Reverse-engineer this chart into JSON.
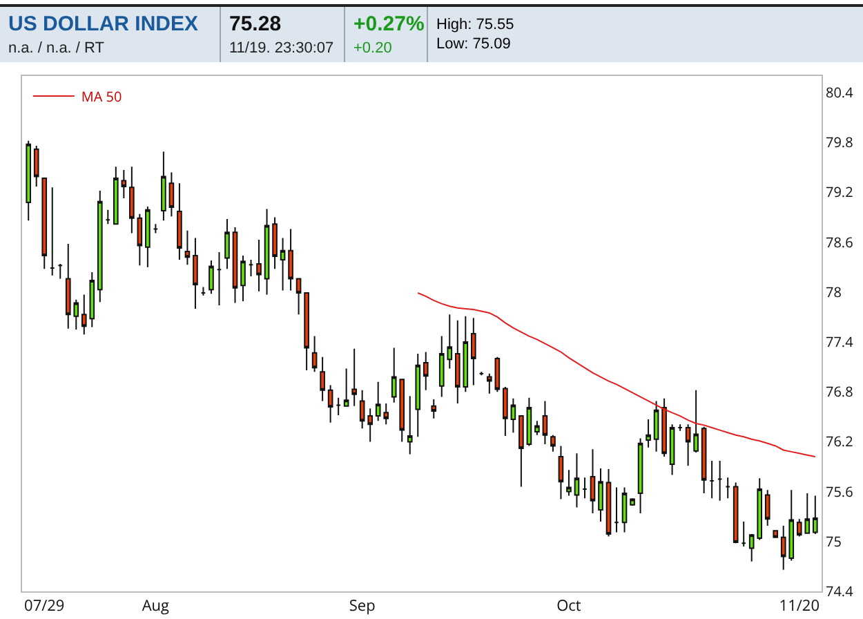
{
  "chart_data": {
    "type": "candlestick",
    "title": "US DOLLAR INDEX",
    "subtitle": "n.a. / n.a. / RT",
    "annotations": [
      "75.28",
      "11/19. 23:30:07",
      "+0.27%",
      "+0.20",
      "High: 75.55",
      "Low: 75.09"
    ],
    "categories": [
      null,
      null,
      "07/29",
      null,
      null,
      null,
      null,
      null,
      null,
      null,
      null,
      null,
      null,
      null,
      null,
      null,
      "Aug",
      null,
      null,
      null,
      null,
      null,
      null,
      null,
      null,
      null,
      null,
      null,
      null,
      null,
      null,
      null,
      null,
      null,
      null,
      null,
      null,
      null,
      null,
      null,
      null,
      null,
      "Sep",
      null,
      null,
      null,
      null,
      null,
      null,
      null,
      null,
      null,
      null,
      null,
      null,
      null,
      null,
      null,
      null,
      null,
      null,
      null,
      null,
      null,
      null,
      null,
      null,
      null,
      "Oct",
      null,
      null,
      null,
      null,
      null,
      null,
      null,
      null,
      null,
      null,
      null,
      null,
      null,
      null,
      null,
      null,
      null,
      null,
      null,
      null,
      null,
      null,
      null,
      null,
      null,
      null,
      null,
      null,
      "11/20",
      null,
      null
    ],
    "ohlc": [
      [
        79.08,
        79.82,
        78.86,
        79.78
      ],
      [
        79.72,
        79.76,
        79.27,
        79.39
      ],
      [
        79.37,
        79.37,
        78.28,
        78.44
      ],
      [
        78.29,
        79.26,
        78.2,
        78.29
      ],
      [
        78.32,
        78.34,
        78.16,
        78.32
      ],
      [
        78.16,
        78.58,
        77.56,
        77.73
      ],
      [
        77.71,
        77.91,
        77.55,
        77.87
      ],
      [
        77.73,
        77.97,
        77.49,
        77.59
      ],
      [
        77.68,
        78.24,
        77.58,
        78.14
      ],
      [
        78.03,
        79.22,
        77.88,
        79.09
      ],
      [
        78.87,
        78.99,
        78.82,
        78.87
      ],
      [
        78.82,
        79.51,
        78.82,
        79.37
      ],
      [
        79.34,
        79.47,
        79.13,
        79.27
      ],
      [
        79.26,
        79.51,
        78.71,
        78.89
      ],
      [
        78.89,
        78.94,
        78.32,
        78.56
      ],
      [
        78.54,
        79.03,
        78.3,
        78.99
      ],
      [
        78.76,
        78.82,
        78.71,
        78.76
      ],
      [
        78.98,
        79.69,
        78.86,
        79.39
      ],
      [
        79.31,
        79.44,
        78.91,
        79.02
      ],
      [
        78.97,
        79.31,
        78.39,
        78.53
      ],
      [
        78.49,
        78.74,
        78.33,
        78.42
      ],
      [
        78.44,
        78.65,
        77.8,
        78.09
      ],
      [
        77.99,
        78.06,
        77.96,
        77.99
      ],
      [
        78.03,
        78.38,
        77.98,
        78.31
      ],
      [
        78.27,
        78.48,
        77.84,
        78.27
      ],
      [
        78.41,
        78.88,
        78.28,
        78.72
      ],
      [
        78.72,
        78.78,
        77.87,
        78.05
      ],
      [
        78.08,
        78.44,
        77.89,
        78.37
      ],
      [
        78.33,
        78.39,
        78.19,
        78.33
      ],
      [
        78.34,
        78.63,
        78.01,
        78.21
      ],
      [
        78.16,
        79.0,
        77.97,
        78.8
      ],
      [
        78.82,
        78.9,
        78.28,
        78.43
      ],
      [
        78.39,
        78.65,
        78.02,
        78.5
      ],
      [
        78.5,
        78.76,
        78.02,
        78.16
      ],
      [
        78.16,
        78.16,
        77.73,
        77.99
      ],
      [
        77.99,
        77.99,
        77.06,
        77.33
      ],
      [
        77.27,
        77.47,
        77.04,
        77.09
      ],
      [
        77.04,
        77.22,
        76.69,
        76.82
      ],
      [
        76.82,
        76.88,
        76.43,
        76.62
      ],
      [
        76.64,
        76.73,
        76.52,
        76.64
      ],
      [
        76.63,
        77.08,
        76.63,
        76.7
      ],
      [
        76.83,
        77.32,
        76.63,
        76.77
      ],
      [
        76.69,
        76.82,
        76.36,
        76.45
      ],
      [
        76.51,
        76.6,
        76.2,
        76.41
      ],
      [
        76.51,
        76.92,
        76.45,
        76.65
      ],
      [
        76.55,
        76.66,
        76.41,
        76.48
      ],
      [
        76.74,
        77.33,
        76.67,
        76.98
      ],
      [
        76.95,
        76.95,
        76.2,
        76.34
      ],
      [
        76.2,
        76.75,
        76.05,
        76.27
      ],
      [
        76.59,
        77.26,
        76.26,
        77.12
      ],
      [
        77.15,
        77.28,
        76.82,
        76.99
      ],
      [
        76.63,
        76.71,
        76.48,
        76.57
      ],
      [
        76.87,
        77.47,
        76.74,
        77.26
      ],
      [
        77.19,
        77.73,
        77.08,
        77.34
      ],
      [
        77.26,
        77.66,
        76.66,
        76.86
      ],
      [
        76.86,
        77.71,
        76.8,
        77.4
      ],
      [
        77.5,
        77.69,
        76.88,
        77.2
      ],
      [
        77.02,
        77.04,
        77.0,
        77.02
      ],
      [
        76.98,
        77.02,
        76.78,
        76.93
      ],
      [
        77.2,
        77.22,
        76.8,
        76.83
      ],
      [
        76.84,
        76.86,
        76.27,
        76.48
      ],
      [
        76.47,
        76.72,
        76.31,
        76.64
      ],
      [
        76.51,
        76.52,
        75.66,
        76.12
      ],
      [
        76.17,
        76.73,
        76.15,
        76.61
      ],
      [
        76.32,
        76.45,
        76.28,
        76.39
      ],
      [
        76.51,
        76.69,
        76.17,
        76.28
      ],
      [
        76.26,
        76.28,
        76.08,
        76.15
      ],
      [
        76.02,
        76.15,
        75.51,
        75.72
      ],
      [
        75.6,
        75.86,
        75.55,
        75.65
      ],
      [
        75.56,
        76.06,
        75.41,
        75.76
      ],
      [
        75.63,
        75.77,
        75.52,
        75.63
      ],
      [
        75.78,
        76.11,
        75.34,
        75.49
      ],
      [
        75.38,
        75.88,
        75.24,
        75.72
      ],
      [
        75.71,
        75.87,
        75.06,
        75.09
      ],
      [
        75.23,
        75.65,
        75.11,
        75.23
      ],
      [
        75.23,
        75.65,
        75.11,
        75.58
      ],
      [
        75.44,
        75.52,
        75.43,
        75.51
      ],
      [
        75.58,
        76.24,
        75.34,
        76.18
      ],
      [
        76.22,
        76.47,
        76.13,
        76.28
      ],
      [
        76.23,
        76.69,
        76.08,
        76.58
      ],
      [
        76.61,
        76.72,
        76.02,
        76.06
      ],
      [
        75.93,
        76.41,
        75.8,
        76.37
      ],
      [
        76.37,
        76.41,
        76.33,
        76.37
      ],
      [
        76.37,
        76.41,
        75.91,
        76.2
      ],
      [
        76.09,
        76.82,
        76.07,
        76.29
      ],
      [
        76.36,
        76.38,
        75.58,
        75.74
      ],
      [
        75.73,
        75.97,
        75.52,
        75.73
      ],
      [
        75.75,
        75.97,
        75.49,
        75.75
      ],
      [
        75.66,
        75.77,
        75.52,
        75.66
      ],
      [
        75.66,
        75.71,
        74.98,
        74.99
      ],
      [
        74.98,
        75.24,
        74.94,
        74.98
      ],
      [
        74.92,
        75.09,
        74.76,
        75.08
      ],
      [
        75.04,
        75.76,
        75.02,
        75.63
      ],
      [
        75.56,
        75.62,
        75.19,
        75.27
      ],
      [
        75.13,
        75.13,
        75.05,
        75.05
      ],
      [
        75.05,
        75.19,
        74.66,
        74.82
      ],
      [
        74.8,
        75.62,
        74.77,
        75.26
      ],
      [
        75.23,
        75.27,
        75.06,
        75.08
      ],
      [
        75.1,
        75.58,
        75.1,
        75.27
      ],
      [
        75.11,
        75.55,
        75.09,
        75.28
      ]
    ],
    "colors": [
      "#66e010",
      "#e8400c",
      "#e8400c",
      "#111111",
      "#111111",
      "#e8400c",
      "#66e010",
      "#e8400c",
      "#66e010",
      "#66e010",
      "#111111",
      "#66e010",
      "#e8400c",
      "#e8400c",
      "#e8400c",
      "#66e010",
      "#111111",
      "#66e010",
      "#e8400c",
      "#e8400c",
      "#e8400c",
      "#e8400c",
      "#111111",
      "#66e010",
      "#111111",
      "#66e010",
      "#e8400c",
      "#66e010",
      "#111111",
      "#e8400c",
      "#66e010",
      "#e8400c",
      "#66e010",
      "#e8400c",
      "#e8400c",
      "#e8400c",
      "#e8400c",
      "#e8400c",
      "#e8400c",
      "#111111",
      "#66e010",
      "#e8400c",
      "#e8400c",
      "#e8400c",
      "#66e010",
      "#e8400c",
      "#66e010",
      "#e8400c",
      "#66e010",
      "#66e010",
      "#e8400c",
      "#e8400c",
      "#66e010",
      "#66e010",
      "#e8400c",
      "#66e010",
      "#e8400c",
      "#111111",
      "#e8400c",
      "#e8400c",
      "#e8400c",
      "#66e010",
      "#e8400c",
      "#66e010",
      "#66e010",
      "#e8400c",
      "#e8400c",
      "#e8400c",
      "#66e010",
      "#66e010",
      "#111111",
      "#e8400c",
      "#66e010",
      "#e8400c",
      "#111111",
      "#66e010",
      "#66e010",
      "#66e010",
      "#66e010",
      "#66e010",
      "#e8400c",
      "#66e010",
      "#111111",
      "#e8400c",
      "#66e010",
      "#e8400c",
      "#111111",
      "#111111",
      "#111111",
      "#e8400c",
      "#111111",
      "#66e010",
      "#66e010",
      "#e8400c",
      "#e8400c",
      "#e8400c",
      "#66e010",
      "#e8400c",
      "#66e010",
      "#66e010"
    ],
    "series": [
      {
        "name": "MA 50",
        "type": "line",
        "color": "#e02020",
        "values": [
          null,
          null,
          null,
          null,
          null,
          null,
          null,
          null,
          null,
          null,
          null,
          null,
          null,
          null,
          null,
          null,
          null,
          null,
          null,
          null,
          null,
          null,
          null,
          null,
          null,
          null,
          null,
          null,
          null,
          null,
          null,
          null,
          null,
          null,
          null,
          null,
          null,
          null,
          null,
          null,
          null,
          null,
          null,
          null,
          null,
          null,
          null,
          null,
          null,
          77.99,
          77.95,
          77.9,
          77.86,
          77.83,
          77.81,
          77.8,
          77.79,
          77.77,
          77.75,
          77.7,
          77.63,
          77.57,
          77.52,
          77.47,
          77.43,
          77.38,
          77.33,
          77.28,
          77.21,
          77.15,
          77.09,
          77.03,
          76.98,
          76.93,
          76.89,
          76.84,
          76.79,
          76.74,
          76.69,
          76.64,
          76.59,
          76.55,
          76.51,
          76.46,
          76.42,
          76.4,
          76.37,
          76.34,
          76.31,
          76.28,
          76.26,
          76.23,
          76.21,
          76.18,
          76.15,
          76.1,
          76.08,
          76.06,
          76.04,
          76.02
        ]
      }
    ],
    "ylim": [
      74.4,
      80.6
    ],
    "yticks": [
      74.4,
      75.0,
      75.6,
      76.2,
      76.8,
      77.4,
      78.0,
      78.6,
      79.2,
      79.8,
      80.4
    ],
    "grid": false,
    "legend": "top left"
  }
}
